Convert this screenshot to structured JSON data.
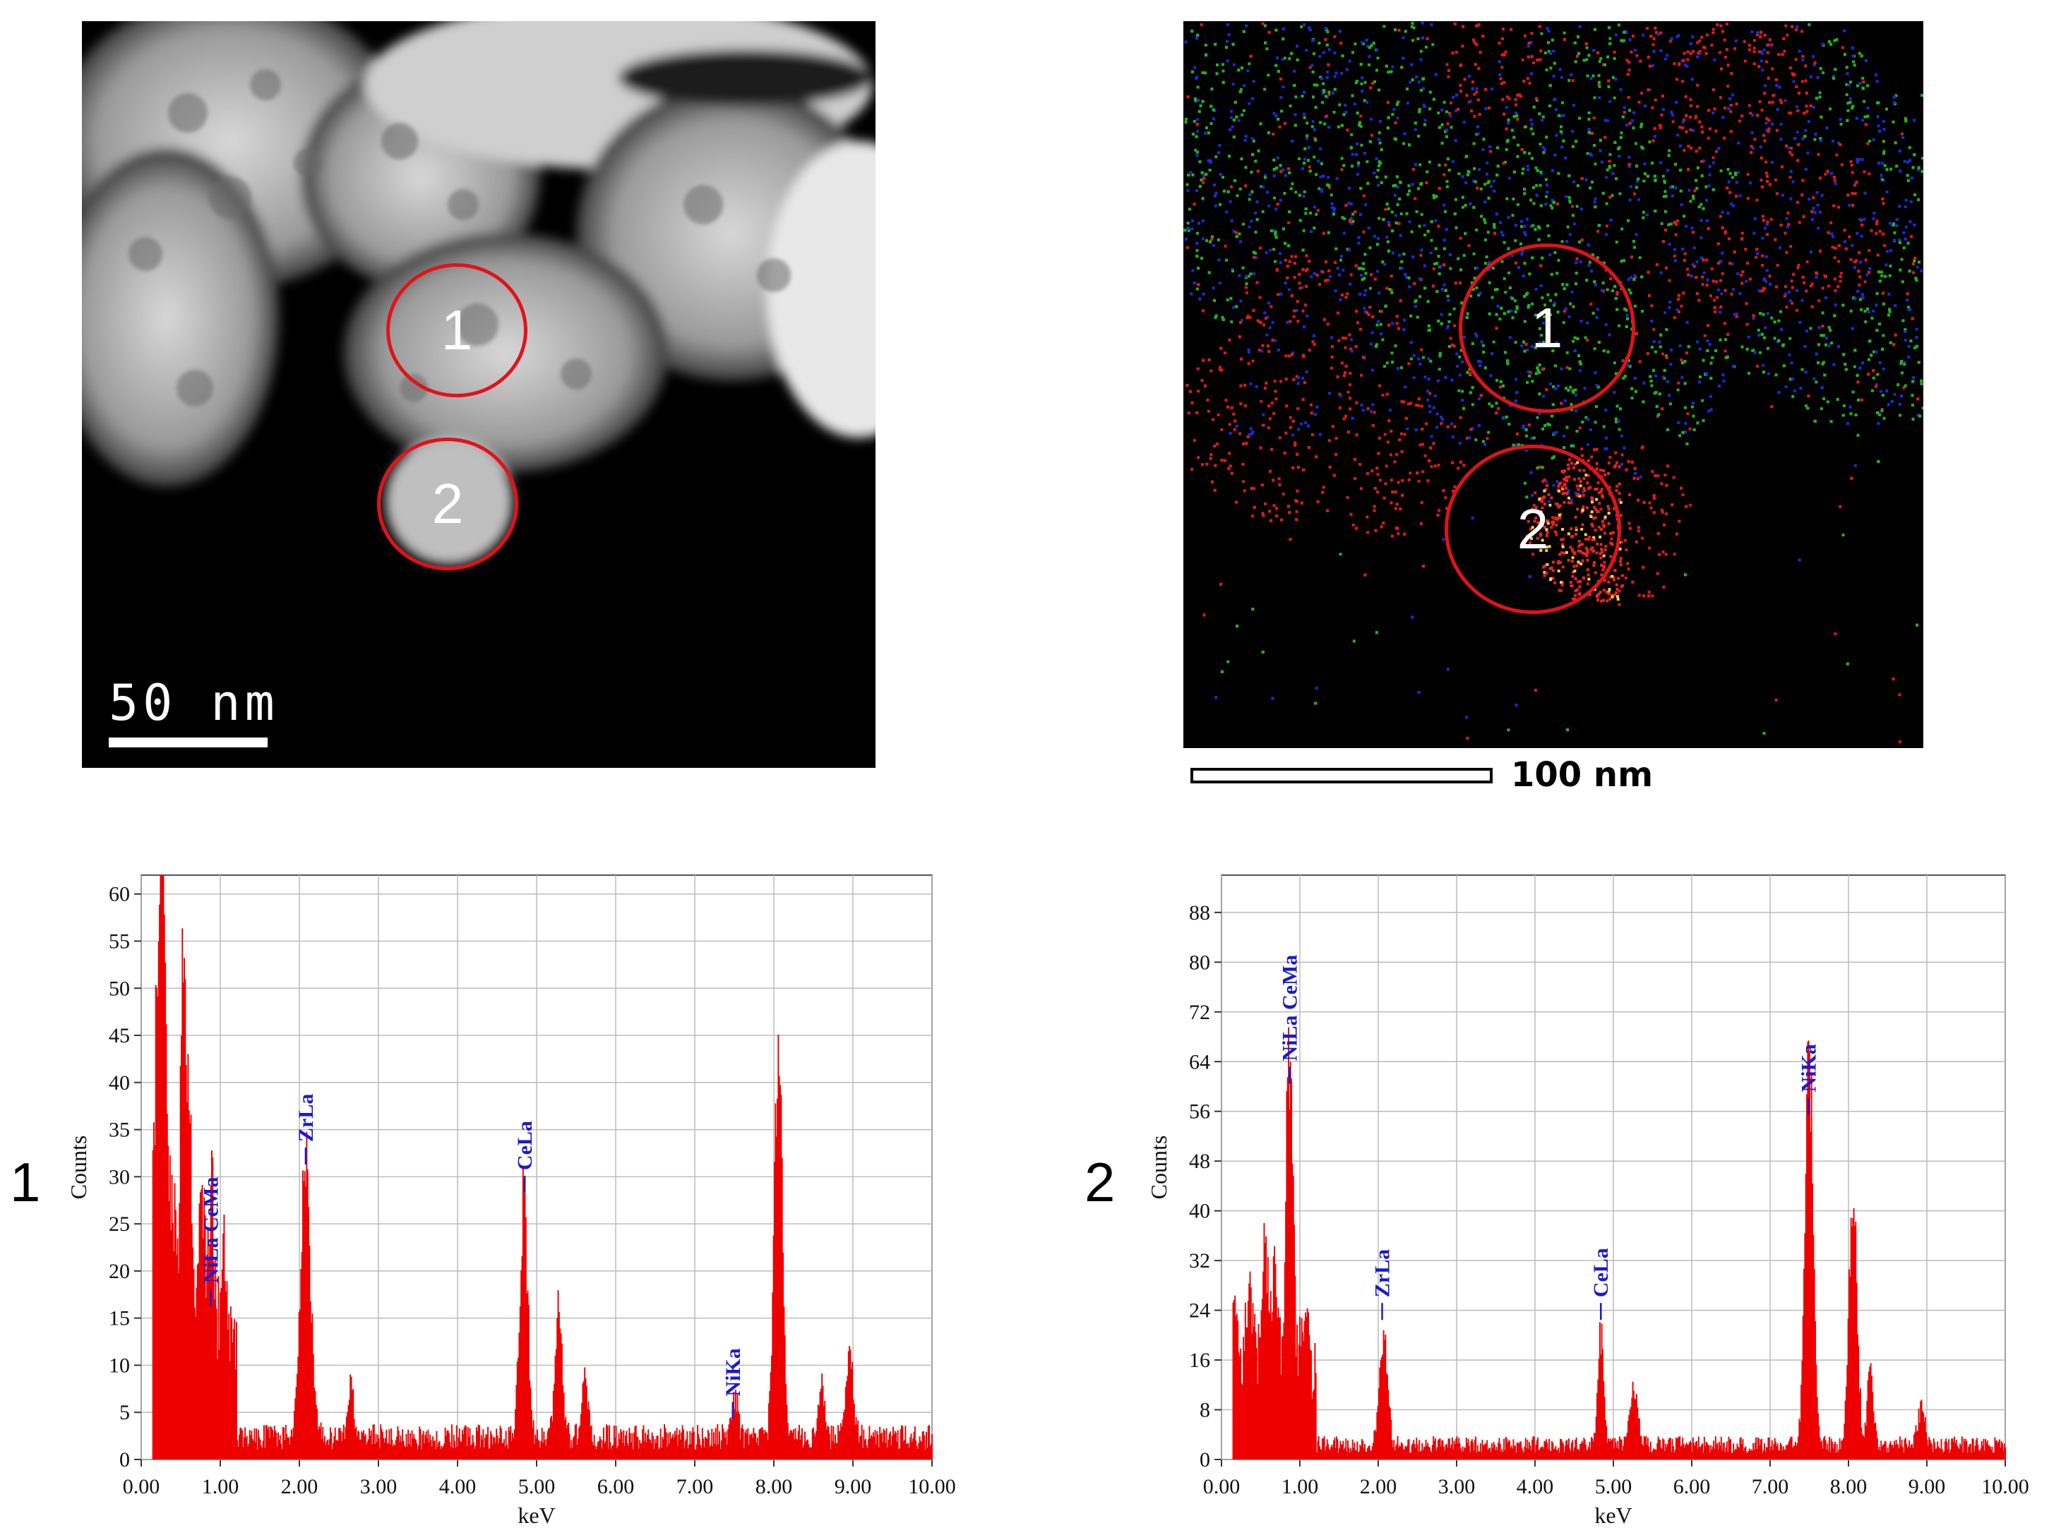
{
  "images": {
    "stem": {
      "scale_label": "50 nm",
      "regions": [
        "1",
        "2"
      ]
    },
    "map": {
      "scale_label": "100 nm",
      "regions": [
        "1",
        "2"
      ]
    }
  },
  "panel_labels": [
    "1",
    "2"
  ],
  "colors": {
    "spectrum": "#ee0000",
    "peak_label": "#1a1acc",
    "circle": "#e2121a"
  },
  "chart_data": [
    {
      "type": "bar",
      "panel": "1",
      "xlabel": "keV",
      "ylabel": "Counts",
      "xlim": [
        0,
        10
      ],
      "ylim": [
        0,
        62
      ],
      "grid": true,
      "xticks": [
        "0.00",
        "1.00",
        "2.00",
        "3.00",
        "4.00",
        "5.00",
        "6.00",
        "7.00",
        "8.00",
        "9.00",
        "10.00"
      ],
      "yticks": [
        0,
        5,
        10,
        15,
        20,
        25,
        30,
        35,
        40,
        45,
        50,
        55,
        60
      ],
      "peaks": [
        {
          "x": 0.2,
          "y": 36,
          "w": 0.08
        },
        {
          "x": 0.27,
          "y": 42,
          "w": 0.05
        },
        {
          "x": 0.38,
          "y": 20,
          "w": 0.06
        },
        {
          "x": 0.52,
          "y": 43,
          "w": 0.05
        },
        {
          "x": 0.6,
          "y": 24,
          "w": 0.05
        },
        {
          "x": 0.75,
          "y": 15,
          "w": 0.06
        },
        {
          "x": 0.88,
          "y": 16,
          "w": 0.05
        },
        {
          "x": 1.05,
          "y": 10,
          "w": 0.06
        },
        {
          "x": 2.07,
          "y": 31,
          "w": 0.09
        },
        {
          "x": 2.65,
          "y": 6,
          "w": 0.05
        },
        {
          "x": 4.83,
          "y": 28,
          "w": 0.07
        },
        {
          "x": 5.27,
          "y": 17,
          "w": 0.06
        },
        {
          "x": 5.6,
          "y": 7,
          "w": 0.06
        },
        {
          "x": 7.5,
          "y": 5,
          "w": 0.05
        },
        {
          "x": 8.05,
          "y": 47,
          "w": 0.07
        },
        {
          "x": 8.6,
          "y": 6,
          "w": 0.05
        },
        {
          "x": 8.95,
          "y": 10,
          "w": 0.06
        }
      ],
      "background": 3,
      "labels": [
        {
          "text": "NiLa CeMa",
          "x": 0.88,
          "y": 16
        },
        {
          "text": "ZrLa",
          "x": 2.08,
          "y": 31
        },
        {
          "text": "CeLa",
          "x": 4.85,
          "y": 28
        },
        {
          "text": "NiKa",
          "x": 7.48,
          "y": 4
        }
      ]
    },
    {
      "type": "bar",
      "panel": "2",
      "xlabel": "keV",
      "ylabel": "Counts",
      "xlim": [
        0,
        10
      ],
      "ylim": [
        0,
        94
      ],
      "grid": true,
      "xticks": [
        "0.00",
        "1.00",
        "2.00",
        "3.00",
        "4.00",
        "5.00",
        "6.00",
        "7.00",
        "8.00",
        "9.00",
        "10.00"
      ],
      "yticks": [
        0,
        8,
        16,
        24,
        32,
        40,
        48,
        56,
        64,
        72,
        80,
        88
      ],
      "peaks": [
        {
          "x": 0.15,
          "y": 12,
          "w": 0.06
        },
        {
          "x": 0.35,
          "y": 18,
          "w": 0.06
        },
        {
          "x": 0.55,
          "y": 24,
          "w": 0.06
        },
        {
          "x": 0.68,
          "y": 20,
          "w": 0.05
        },
        {
          "x": 0.86,
          "y": 60,
          "w": 0.06
        },
        {
          "x": 1.05,
          "y": 10,
          "w": 0.06
        },
        {
          "x": 2.06,
          "y": 20,
          "w": 0.07
        },
        {
          "x": 4.83,
          "y": 20,
          "w": 0.05
        },
        {
          "x": 5.25,
          "y": 10,
          "w": 0.07
        },
        {
          "x": 7.49,
          "y": 71,
          "w": 0.07
        },
        {
          "x": 8.05,
          "y": 45,
          "w": 0.07
        },
        {
          "x": 8.27,
          "y": 14,
          "w": 0.05
        },
        {
          "x": 8.92,
          "y": 7,
          "w": 0.06
        }
      ],
      "background": 3,
      "labels": [
        {
          "text": "NiLa CeMa",
          "x": 0.87,
          "y": 60
        },
        {
          "text": "ZrLa",
          "x": 2.05,
          "y": 22
        },
        {
          "text": "CeLa",
          "x": 4.84,
          "y": 22
        },
        {
          "text": "NiKa",
          "x": 7.49,
          "y": 55
        }
      ]
    }
  ]
}
